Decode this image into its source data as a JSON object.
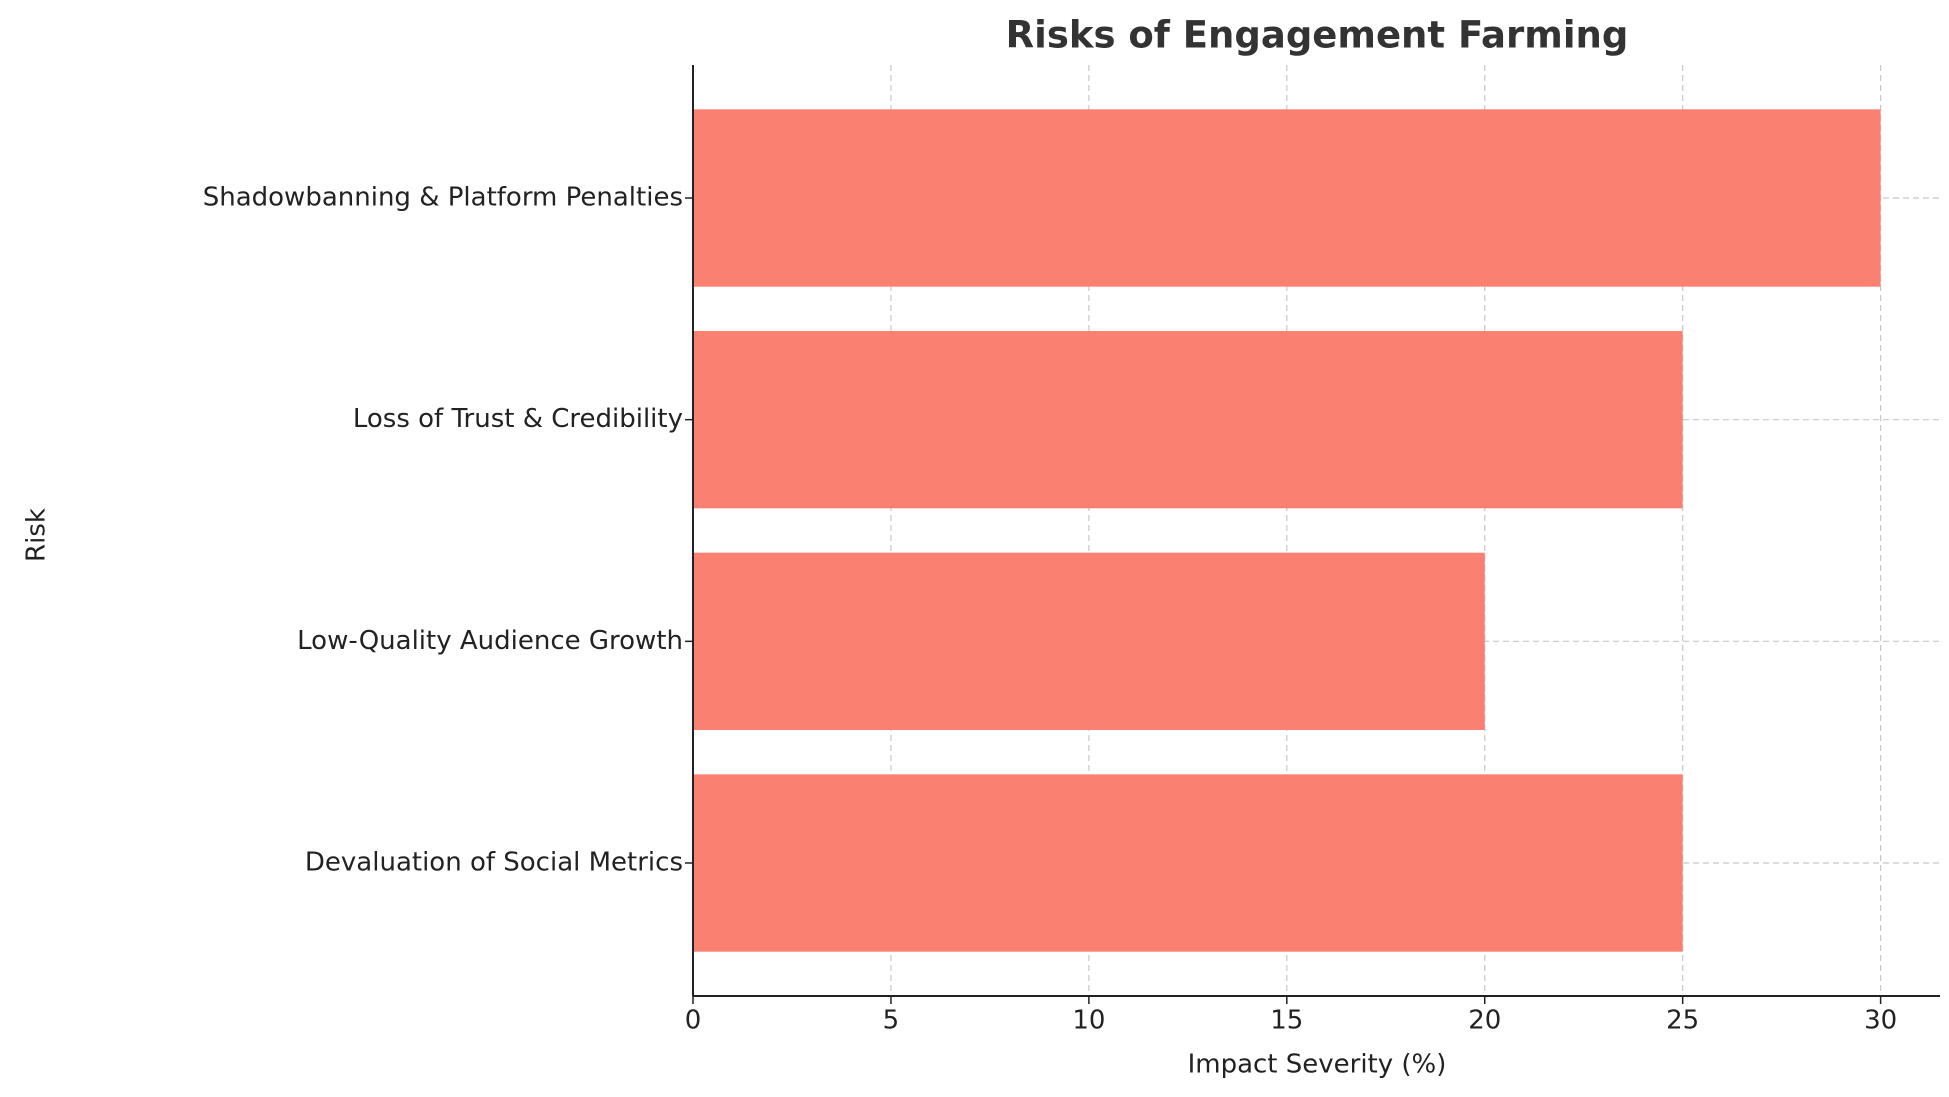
{
  "chart_data": {
    "type": "barh",
    "title": "Risks of Engagement Farming",
    "x_label": "Impact Severity (%)",
    "y_label": "Risk",
    "categories": [
      "Shadowbanning & Platform Penalties",
      "Loss of Trust & Credibility",
      "Low-Quality Audience Growth",
      "Devaluation of Social Metrics"
    ],
    "values": [
      30,
      25,
      20,
      25
    ],
    "color": "#fa8072",
    "xlim": [
      0,
      31.5
    ],
    "xticks": [
      0,
      5,
      10,
      15,
      20,
      25,
      30
    ],
    "grid": true
  }
}
